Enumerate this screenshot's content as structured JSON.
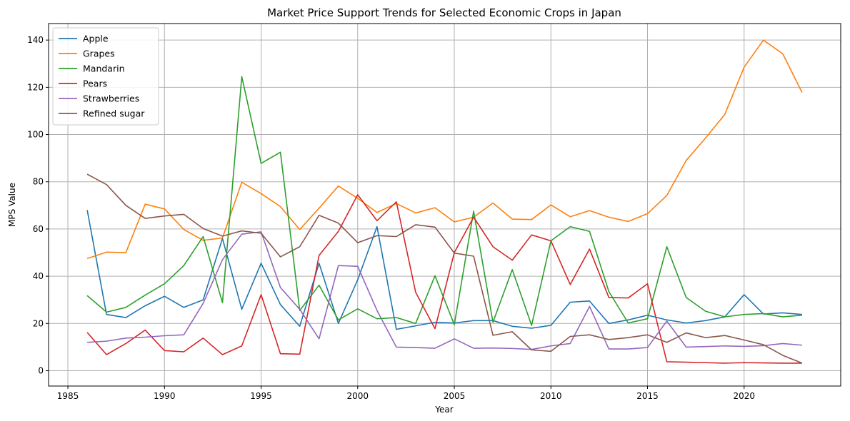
{
  "chart_data": {
    "type": "line",
    "title": "Market Price Support Trends for Selected Economic Crops in Japan",
    "xlabel": "Year",
    "ylabel": "MPS Value",
    "xlim": [
      1984,
      2025
    ],
    "ylim": [
      -6.5,
      147
    ],
    "xticks": [
      1985,
      1990,
      1995,
      2000,
      2005,
      2010,
      2015,
      2020
    ],
    "yticks": [
      0,
      20,
      40,
      60,
      80,
      100,
      120,
      140
    ],
    "grid": true,
    "legend_position": "top-left",
    "x": [
      1986,
      1987,
      1988,
      1989,
      1990,
      1991,
      1992,
      1993,
      1994,
      1995,
      1996,
      1997,
      1998,
      1999,
      2000,
      2001,
      2002,
      2003,
      2004,
      2005,
      2006,
      2007,
      2008,
      2009,
      2010,
      2011,
      2012,
      2013,
      2014,
      2015,
      2016,
      2017,
      2018,
      2019,
      2020,
      2021,
      2022,
      2023
    ],
    "series": [
      {
        "name": "Apple",
        "color": "#1f77b4",
        "values": [
          68,
          23.8,
          22.5,
          27.5,
          31.5,
          26.8,
          30,
          56,
          26,
          45.5,
          28,
          18.8,
          45.5,
          20,
          38.5,
          61,
          17.5,
          19,
          20.5,
          20.2,
          21.2,
          21.2,
          18.8,
          18,
          19.2,
          29,
          29.5,
          20,
          21.5,
          23.5,
          21.5,
          20.2,
          21.2,
          22.8,
          32.2,
          24,
          24.5,
          23.8
        ]
      },
      {
        "name": "Grapes",
        "color": "#ff7f0e",
        "values": [
          47.5,
          50.2,
          50,
          70.5,
          68.5,
          59.8,
          55.2,
          56.2,
          79.8,
          75,
          69.5,
          59.8,
          68.8,
          78.2,
          73,
          67,
          70.8,
          66.8,
          69,
          63,
          65,
          71,
          64.2,
          64,
          70.2,
          65.2,
          67.8,
          65,
          63.2,
          66.5,
          74.2,
          89,
          98.5,
          108.5,
          128.5,
          140,
          134.2,
          117.8
        ]
      },
      {
        "name": "Mandarin",
        "color": "#2ca02c",
        "values": [
          31.8,
          24.8,
          26.8,
          32,
          36.8,
          44.5,
          56.8,
          28.8,
          124.5,
          87.8,
          92.5,
          25.5,
          36.2,
          21.5,
          26.2,
          22,
          22.5,
          20,
          40.2,
          19.5,
          67.5,
          20.5,
          42.8,
          19.2,
          55,
          61,
          59,
          33.5,
          20.2,
          22,
          52.5,
          31,
          25.2,
          22.8,
          23.8,
          24.2,
          22.8,
          23.5
        ]
      },
      {
        "name": "Pears",
        "color": "#d62728",
        "values": [
          16.2,
          6.8,
          11.5,
          17.2,
          8.5,
          8,
          13.8,
          6.8,
          10.5,
          32.2,
          7.2,
          7,
          48.8,
          59,
          74.5,
          63.5,
          71.5,
          33.2,
          17.8,
          50,
          65,
          52.5,
          46.8,
          57.5,
          55,
          36.5,
          51.5,
          31,
          30.8,
          36.8,
          3.8,
          3.6,
          3.4,
          3.2,
          3.4,
          3.3,
          3.2,
          3.2
        ]
      },
      {
        "name": "Strawberries",
        "color": "#9467bd",
        "values": [
          12,
          12.5,
          13.8,
          14.2,
          14.8,
          15.2,
          28.5,
          47,
          57.8,
          58.8,
          35.2,
          26,
          13.5,
          44.5,
          44.2,
          25.5,
          10,
          9.8,
          9.5,
          13.5,
          9.5,
          9.6,
          9.4,
          9,
          10.5,
          11.5,
          27.2,
          9.2,
          9.2,
          9.8,
          21,
          10,
          10.2,
          10.5,
          10.3,
          10.6,
          11.5,
          10.8
        ]
      },
      {
        "name": "Refined sugar",
        "color": "#8c564b",
        "values": [
          83.2,
          78.8,
          70,
          64.5,
          65.5,
          66.2,
          60.2,
          57,
          59.2,
          58.2,
          48.2,
          52.5,
          65.8,
          62.5,
          54.2,
          57.2,
          56.8,
          61.8,
          60.8,
          49.8,
          48.5,
          15,
          16.5,
          8.8,
          8.2,
          14.5,
          15.2,
          13.2,
          14,
          15.2,
          12,
          16,
          14,
          14.9,
          13,
          11,
          6.5,
          3.2
        ]
      }
    ]
  }
}
